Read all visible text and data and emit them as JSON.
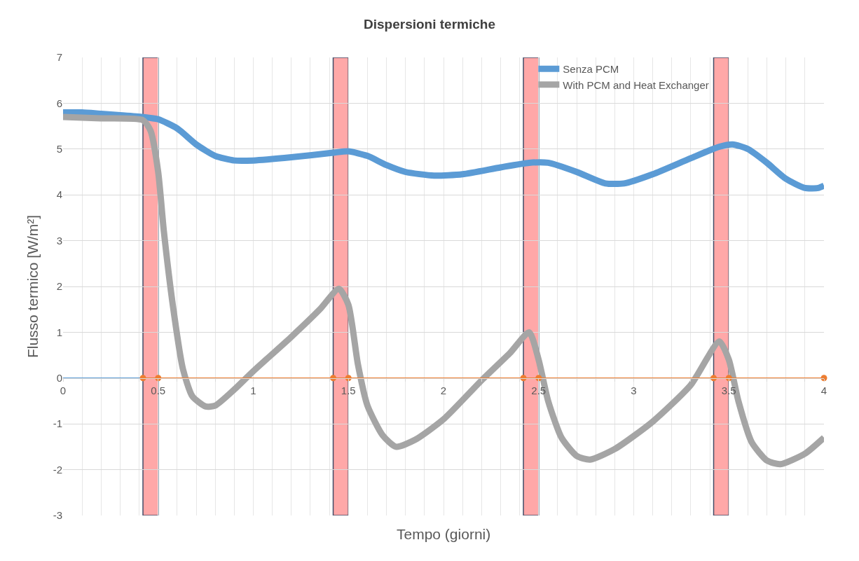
{
  "chart_data": {
    "type": "line",
    "title": "Dispersioni termiche",
    "xlabel": "Tempo (giorni)",
    "ylabel": "Flusso termico [W/m²]",
    "xlim": [
      0,
      4
    ],
    "ylim": [
      -3,
      7
    ],
    "xticks": [
      0,
      {
        "value": 0.1,
        "label": null
      },
      {
        "value": 0.2,
        "label": null
      },
      {
        "value": 0.3,
        "label": null
      },
      {
        "value": 0.4,
        "label": null
      },
      0.5,
      {
        "value": 0.6,
        "label": null
      },
      {
        "value": 0.7,
        "label": null
      },
      {
        "value": 0.8,
        "label": null
      },
      {
        "value": 0.9,
        "label": null
      },
      1,
      {
        "value": 1.1,
        "label": null
      },
      {
        "value": 1.2,
        "label": null
      },
      {
        "value": 1.3,
        "label": null
      },
      {
        "value": 1.4,
        "label": null
      },
      1.5,
      {
        "value": 1.6,
        "label": null
      },
      {
        "value": 1.7,
        "label": null
      },
      {
        "value": 1.8,
        "label": null
      },
      {
        "value": 1.9,
        "label": null
      },
      2,
      {
        "value": 2.1,
        "label": null
      },
      {
        "value": 2.2,
        "label": null
      },
      {
        "value": 2.3,
        "label": null
      },
      {
        "value": 2.4,
        "label": null
      },
      2.5,
      {
        "value": 2.6,
        "label": null
      },
      {
        "value": 2.7,
        "label": null
      },
      {
        "value": 2.8,
        "label": null
      },
      {
        "value": 2.9,
        "label": null
      },
      3,
      {
        "value": 3.1,
        "label": null
      },
      {
        "value": 3.2,
        "label": null
      },
      {
        "value": 3.3,
        "label": null
      },
      {
        "value": 3.4,
        "label": null
      },
      3.5,
      {
        "value": 3.6,
        "label": null
      },
      {
        "value": 3.7,
        "label": null
      },
      {
        "value": 3.8,
        "label": null
      },
      {
        "value": 3.9,
        "label": null
      },
      4
    ],
    "yticks": [
      -3,
      -2,
      -1,
      0,
      1,
      2,
      3,
      4,
      5,
      6,
      7
    ],
    "grid": true,
    "legend": "top right",
    "line_style": "solid",
    "series": [
      {
        "name": "Senza PCM",
        "color": "#5b9bd5",
        "x": [
          0,
          0.1,
          0.2,
          0.3,
          0.42,
          0.5,
          0.6,
          0.7,
          0.8,
          0.9,
          1.0,
          1.2,
          1.42,
          1.5,
          1.6,
          1.7,
          1.8,
          1.95,
          2.1,
          2.3,
          2.45,
          2.55,
          2.7,
          2.85,
          2.95,
          3.1,
          3.3,
          3.45,
          3.52,
          3.6,
          3.7,
          3.8,
          3.9,
          3.97,
          4
        ],
        "values": [
          5.8,
          5.8,
          5.77,
          5.74,
          5.7,
          5.65,
          5.45,
          5.1,
          4.85,
          4.75,
          4.75,
          4.82,
          4.92,
          4.95,
          4.85,
          4.65,
          4.5,
          4.42,
          4.45,
          4.6,
          4.7,
          4.7,
          4.5,
          4.25,
          4.25,
          4.45,
          4.8,
          5.05,
          5.1,
          5.0,
          4.7,
          4.35,
          4.15,
          4.15,
          4.2
        ]
      },
      {
        "name": "With PCM and Heat Exchanger",
        "color": "#a5a5a5",
        "x": [
          0,
          0.2,
          0.42,
          0.46,
          0.5,
          0.53,
          0.58,
          0.63,
          0.68,
          0.75,
          0.8,
          0.9,
          1.0,
          1.2,
          1.35,
          1.45,
          1.5,
          1.55,
          1.6,
          1.68,
          1.75,
          1.85,
          2.0,
          2.2,
          2.35,
          2.45,
          2.5,
          2.55,
          2.62,
          2.7,
          2.77,
          2.9,
          3.1,
          3.3,
          3.45,
          3.5,
          3.55,
          3.62,
          3.7,
          3.77,
          3.9,
          4
        ],
        "values": [
          5.7,
          5.67,
          5.63,
          5.4,
          4.5,
          3.2,
          1.5,
          0.2,
          -0.4,
          -0.62,
          -0.6,
          -0.25,
          0.15,
          0.9,
          1.5,
          1.95,
          1.6,
          0.3,
          -0.6,
          -1.25,
          -1.5,
          -1.35,
          -0.9,
          -0.05,
          0.55,
          1.0,
          0.4,
          -0.5,
          -1.3,
          -1.7,
          -1.78,
          -1.55,
          -0.95,
          -0.15,
          0.8,
          0.4,
          -0.5,
          -1.4,
          -1.8,
          -1.88,
          -1.65,
          -1.3
        ]
      },
      {
        "color": "#5b9bd5",
        "x": [
          0,
          0.42
        ],
        "values": [
          0,
          0
        ]
      },
      {
        "color": "#ed7d31",
        "marker": "circle",
        "x": [
          0.42,
          0.5,
          1.42,
          1.5,
          2.42,
          2.5,
          3.42,
          3.5,
          4
        ],
        "values": [
          0,
          0,
          0,
          0,
          0,
          0,
          0,
          0,
          0
        ]
      }
    ],
    "bands": [
      {
        "axis": "x",
        "from": 0.42,
        "to": 0.5,
        "color": "#ff9999"
      },
      {
        "axis": "x",
        "from": 1.42,
        "to": 1.5,
        "color": "#ff9999"
      },
      {
        "axis": "x",
        "from": 2.42,
        "to": 2.5,
        "color": "#ff9999"
      },
      {
        "axis": "x",
        "from": 3.42,
        "to": 3.5,
        "color": "#ff9999"
      }
    ]
  }
}
